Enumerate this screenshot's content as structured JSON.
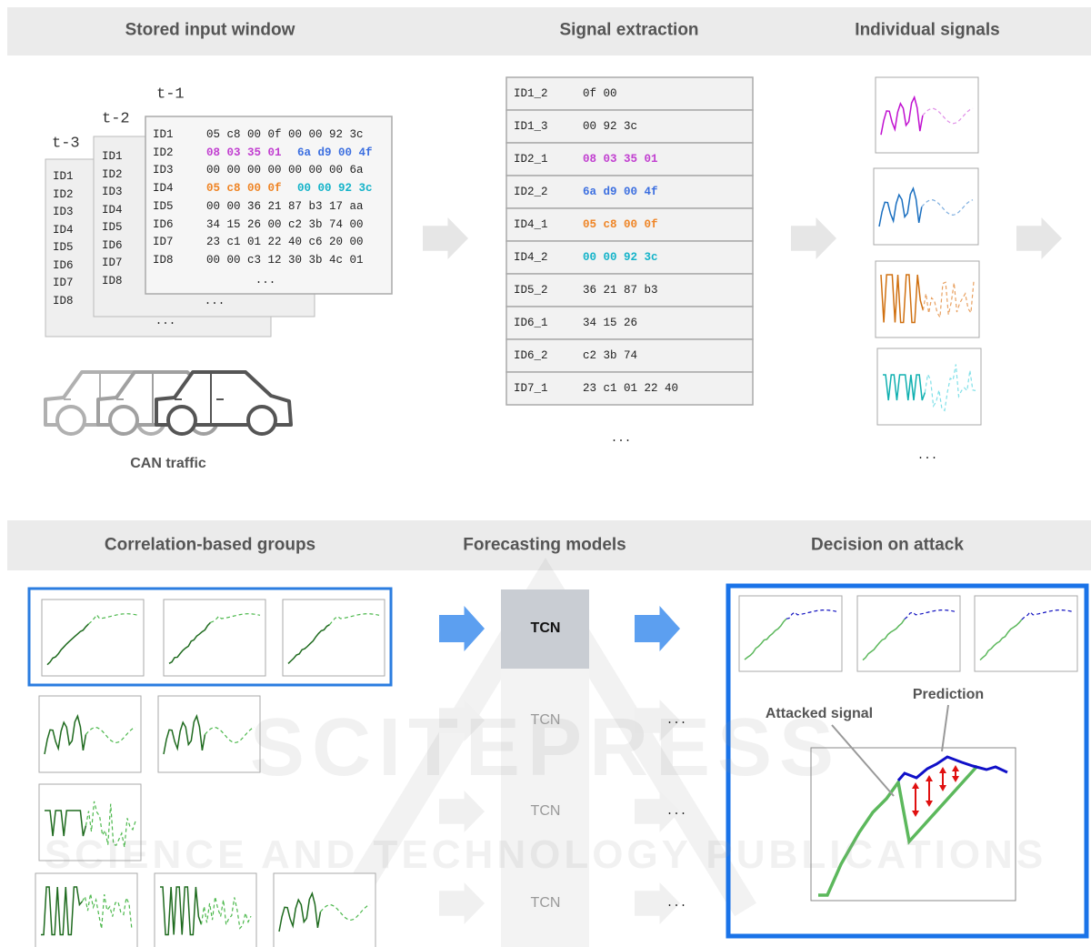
{
  "top_headers": [
    "Stored input window",
    "Signal extraction",
    "Individual signals"
  ],
  "bottom_headers": [
    "Correlation-based groups",
    "Forecasting models",
    "Decision on attack"
  ],
  "windows": [
    {
      "label": "t-3",
      "ids": [
        "ID1",
        "ID2",
        "ID3",
        "ID4",
        "ID5",
        "ID6",
        "ID7",
        "ID8"
      ],
      "more": "..."
    },
    {
      "label": "t-2",
      "ids": [
        "ID1",
        "ID2",
        "ID3",
        "ID4",
        "ID5",
        "ID6",
        "ID7",
        "ID8"
      ],
      "more": "..."
    },
    {
      "label": "t-1",
      "rows": [
        {
          "id": "ID1",
          "segments": [
            {
              "text": "05 c8 00 0f 00 00 92 3c"
            }
          ]
        },
        {
          "id": "ID2",
          "segments": [
            {
              "text": "08 03 35 01",
              "color": "#c13fd0"
            },
            {
              "text": "6a d9 00 4f",
              "color": "#3c6fe0"
            }
          ]
        },
        {
          "id": "ID3",
          "segments": [
            {
              "text": "00 00 00 00 00 00 00 6a"
            }
          ]
        },
        {
          "id": "ID4",
          "segments": [
            {
              "text": "05 c8 00 0f",
              "color": "#ef8526"
            },
            {
              "text": "00 00 92 3c",
              "color": "#14b3c9"
            }
          ]
        },
        {
          "id": "ID5",
          "segments": [
            {
              "text": "00 00 36 21 87 b3 17 aa"
            }
          ]
        },
        {
          "id": "ID6",
          "segments": [
            {
              "text": "34 15 26 00 c2 3b 74 00"
            }
          ]
        },
        {
          "id": "ID7",
          "segments": [
            {
              "text": "23 c1 01 22 40 c6 20 00"
            }
          ]
        },
        {
          "id": "ID8",
          "segments": [
            {
              "text": "00 00 c3 12 30 3b 4c 01"
            }
          ]
        }
      ],
      "more": "..."
    }
  ],
  "can_traffic": "CAN traffic",
  "signal_table": {
    "rows": [
      {
        "id": "ID1_2",
        "bytes": "0f 00"
      },
      {
        "id": "ID1_3",
        "bytes": "00 92 3c"
      },
      {
        "id": "ID2_1",
        "bytes": "08 03 35 01",
        "color": "#c13fd0"
      },
      {
        "id": "ID2_2",
        "bytes": "6a d9 00 4f",
        "color": "#3c6fe0"
      },
      {
        "id": "ID4_1",
        "bytes": "05 c8 00 0f",
        "color": "#ef8526"
      },
      {
        "id": "ID4_2",
        "bytes": "00 00 92 3c",
        "color": "#14b3c9"
      },
      {
        "id": "ID5_2",
        "bytes": "36 21 87 b3"
      },
      {
        "id": "ID6_1",
        "bytes": "34 15 26"
      },
      {
        "id": "ID6_2",
        "bytes": "c2 3b 74"
      },
      {
        "id": "ID7_1",
        "bytes": "23 c1 01 22 40"
      }
    ],
    "more": "..."
  },
  "individual_signals_more": "...",
  "forecasting_models": {
    "models": [
      "TCN",
      "TCN",
      "TCN",
      "TCN"
    ],
    "more": [
      "...",
      "...",
      "..."
    ]
  },
  "decision": {
    "attacked_signal": "Attacked signal",
    "prediction": "Prediction"
  },
  "watermark": [
    "SCITEPRESS",
    "SCIENCE AND TECHNOLOGY PUBLICATIONS"
  ]
}
